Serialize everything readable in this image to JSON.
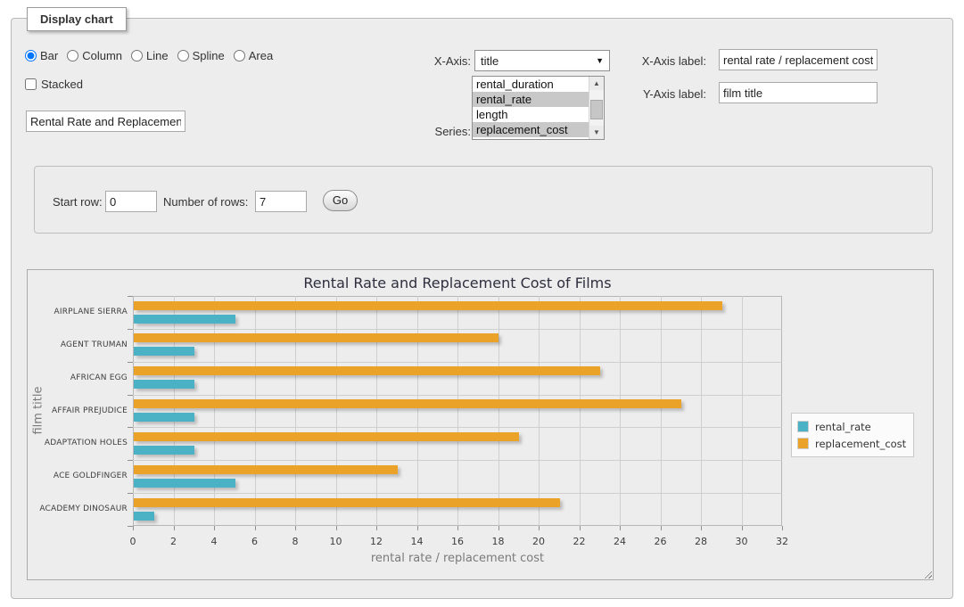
{
  "panel": {
    "legend_title": "Display chart",
    "chart_types": [
      {
        "label": "Bar",
        "selected": true
      },
      {
        "label": "Column",
        "selected": false
      },
      {
        "label": "Line",
        "selected": false
      },
      {
        "label": "Spline",
        "selected": false
      },
      {
        "label": "Area",
        "selected": false
      }
    ],
    "stacked_label": "Stacked",
    "stacked_checked": false,
    "chart_title_input_value": "Rental Rate and Replacement Cost of Films",
    "x_axis_select": {
      "label": "X-Axis:",
      "value": "title"
    },
    "series_select": {
      "label": "Series:",
      "options": [
        {
          "label": "rental_duration",
          "selected": false
        },
        {
          "label": "rental_rate",
          "selected": true
        },
        {
          "label": "length",
          "selected": false
        },
        {
          "label": "replacement_cost",
          "selected": true
        }
      ]
    },
    "x_axis_label_field": {
      "label": "X-Axis label:",
      "value": "rental rate / replacement cost"
    },
    "y_axis_label_field": {
      "label": "Y-Axis label:",
      "value": "film title"
    }
  },
  "rows_form": {
    "start_row_label": "Start row:",
    "start_row_value": "0",
    "num_rows_label": "Number of rows:",
    "num_rows_value": "7",
    "go_label": "Go"
  },
  "chart_data": {
    "type": "bar",
    "orientation": "horizontal",
    "title": "Rental Rate and Replacement Cost of Films",
    "xlabel": "rental rate / replacement cost",
    "ylabel": "film title",
    "categories": [
      "AIRPLANE SIERRA",
      "AGENT TRUMAN",
      "AFRICAN EGG",
      "AFFAIR PREJUDICE",
      "ADAPTATION HOLES",
      "ACE GOLDFINGER",
      "ACADEMY DINOSAUR"
    ],
    "series": [
      {
        "name": "rental_rate",
        "color": "#4bb2c5",
        "values": [
          4.99,
          2.99,
          2.99,
          2.99,
          2.99,
          4.99,
          0.99
        ]
      },
      {
        "name": "replacement_cost",
        "color": "#eaa228",
        "values": [
          28.99,
          17.99,
          22.99,
          26.99,
          18.99,
          12.99,
          20.99
        ]
      }
    ],
    "bar_order_in_group_top_to_bottom": [
      "replacement_cost",
      "rental_rate"
    ],
    "xlim": [
      0,
      32
    ],
    "xticks": [
      0,
      2,
      4,
      6,
      8,
      10,
      12,
      14,
      16,
      18,
      20,
      22,
      24,
      26,
      28,
      30,
      32
    ],
    "grid": true,
    "legend_position": "right"
  }
}
